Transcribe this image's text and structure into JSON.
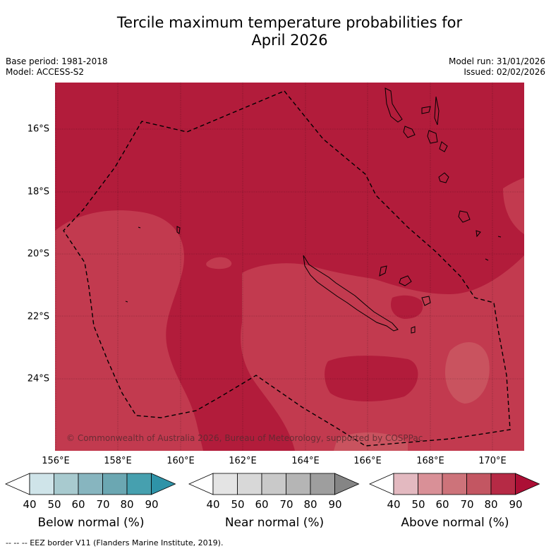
{
  "title": "Tercile maximum temperature probabilities for",
  "title_line2": "April 2026",
  "meta": {
    "base_period": "Base period: 1981-2018",
    "model": "Model: ACCESS-S2",
    "model_run": "Model run: 31/01/2026",
    "issued": "Issued: 02/02/2026"
  },
  "map": {
    "lat_labels": [
      "16°S",
      "18°S",
      "20°S",
      "22°S",
      "24°S"
    ],
    "lon_labels": [
      "156°E",
      "158°E",
      "160°E",
      "162°E",
      "164°E",
      "166°E",
      "168°E",
      "170°E"
    ],
    "copyright": "© Commonwealth of Australia 2026, Bureau of Meteorology, supported by COSPPac",
    "colors": {
      "above_80_90": "#b21c3b",
      "above_70_80": "#c23a4f",
      "above_60_70": "#c9535f",
      "coast": "#000000",
      "eez": "#000000"
    }
  },
  "colorbars": [
    {
      "name": "below",
      "label": "Below normal (%)",
      "ticks": [
        "40",
        "50",
        "60",
        "70",
        "80",
        "90"
      ],
      "colors": [
        "#ffffff",
        "#cfe4e9",
        "#a8cacf",
        "#87b5bf",
        "#6ba7b2",
        "#46a0af",
        "#2e93a8"
      ]
    },
    {
      "name": "near",
      "label": "Near normal (%)",
      "ticks": [
        "40",
        "50",
        "60",
        "70",
        "80",
        "90"
      ],
      "colors": [
        "#ffffff",
        "#e4e4e4",
        "#d8d8d8",
        "#c9c9c9",
        "#b5b5b5",
        "#9e9e9e",
        "#858585"
      ]
    },
    {
      "name": "above",
      "label": "Above normal (%)",
      "ticks": [
        "40",
        "50",
        "60",
        "70",
        "80",
        "90"
      ],
      "colors": [
        "#ffffff",
        "#e3b9c0",
        "#d99097",
        "#cd737a",
        "#c35662",
        "#b62a45",
        "#ac0f35"
      ]
    }
  ],
  "footer": "--  --  -- EEZ border V11 (Flanders Marine Institute, 2019)."
}
